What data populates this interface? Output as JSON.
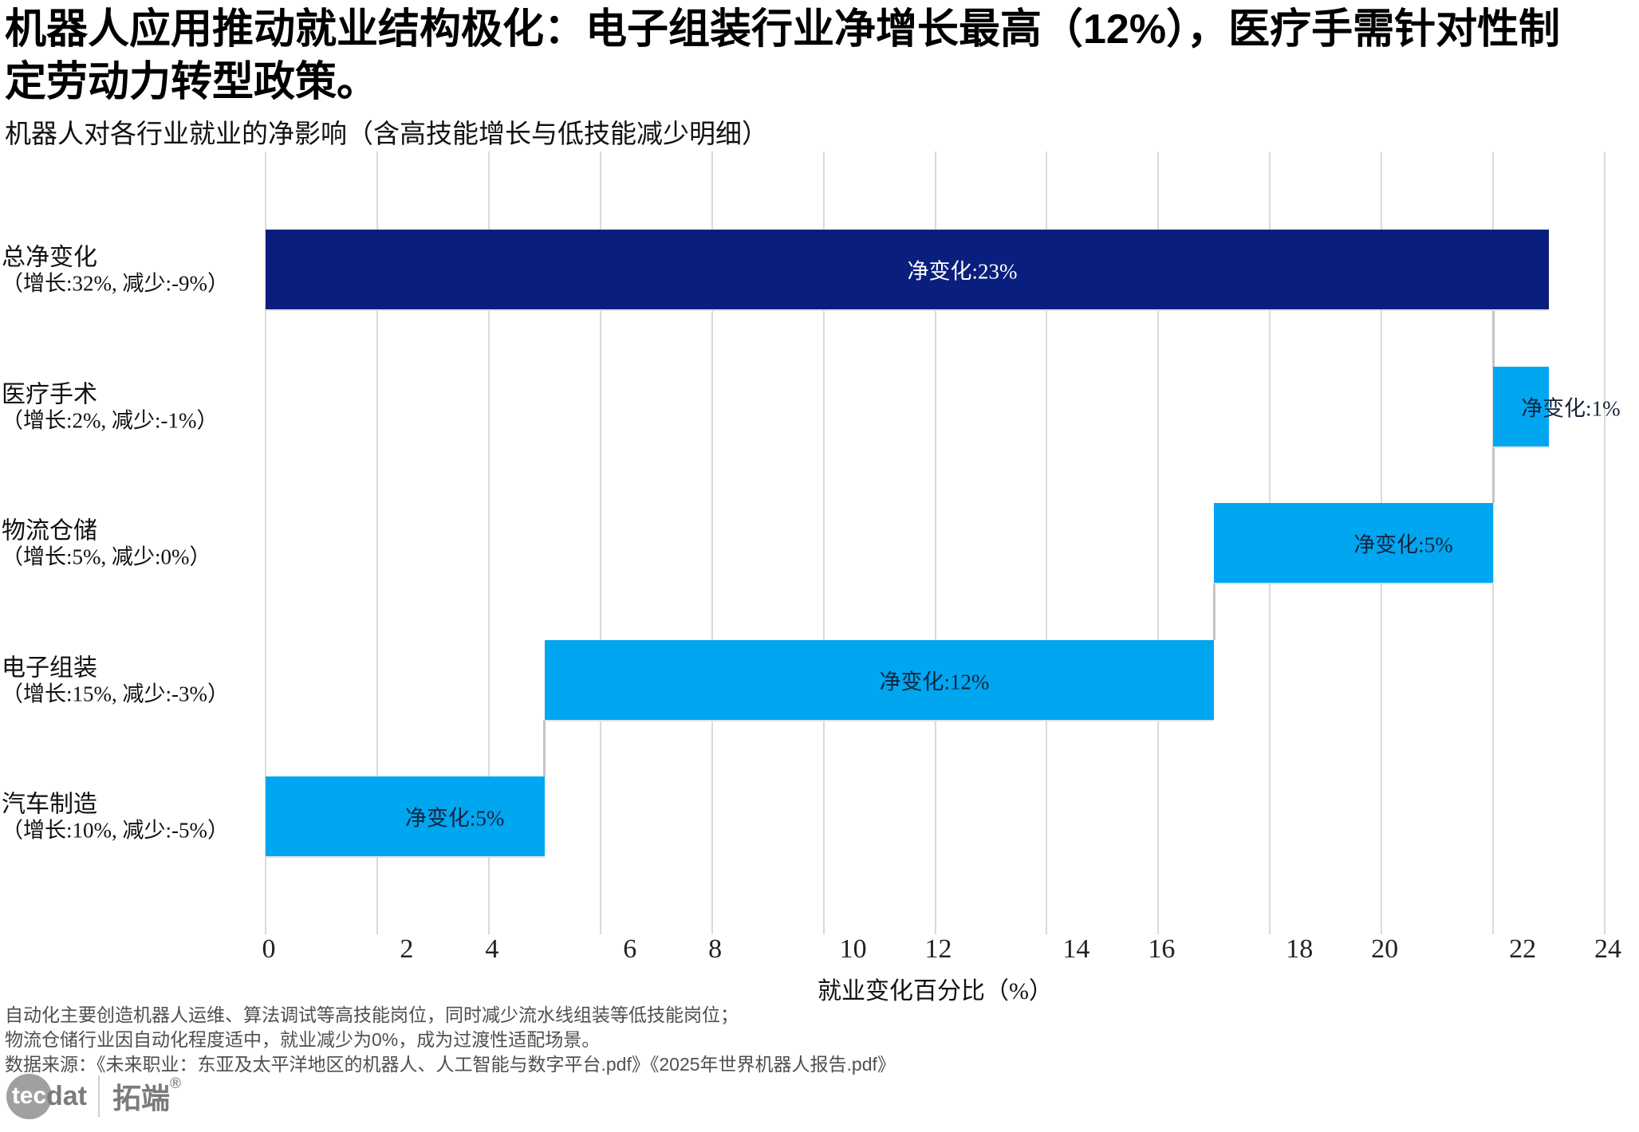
{
  "title": "机器人应用推动就业结构极化：电子组装行业净增长最高（12%），医疗手需针对性制定劳动力转型政策。",
  "subtitle": "机器人对各行业就业的净影响（含高技能增长与低技能减少明细）",
  "chart_data": {
    "type": "bar",
    "variant": "horizontal-waterfall",
    "title": "机器人对各行业就业的净影响（含高技能增长与低技能减少明细）",
    "xlabel": "就业变化百分比（%）",
    "ylabel": "",
    "xlim": [
      0,
      24
    ],
    "xticks": [
      0,
      2,
      4,
      6,
      8,
      10,
      12,
      14,
      16,
      18,
      20,
      22,
      24
    ],
    "grid": true,
    "legend": false,
    "rows": [
      {
        "category": "总净变化",
        "sublabel": "（增长:32%, 减少:-9%）",
        "growth_pct": 32,
        "decline_pct": -9,
        "start": 0,
        "end": 23,
        "net_pct": 23,
        "bar_label": "净变化:23%",
        "is_total": true
      },
      {
        "category": "医疗手术",
        "sublabel": "（增长:2%, 减少:-1%）",
        "growth_pct": 2,
        "decline_pct": -1,
        "start": 22,
        "end": 23,
        "net_pct": 1,
        "bar_label": "净变化:1%",
        "is_total": false
      },
      {
        "category": "物流仓储",
        "sublabel": "（增长:5%, 减少:0%）",
        "growth_pct": 5,
        "decline_pct": 0,
        "start": 17,
        "end": 22,
        "net_pct": 5,
        "bar_label": "净变化:5%",
        "is_total": false
      },
      {
        "category": "电子组装",
        "sublabel": "（增长:15%, 减少:-3%）",
        "growth_pct": 15,
        "decline_pct": -3,
        "start": 5,
        "end": 17,
        "net_pct": 12,
        "bar_label": "净变化:12%",
        "is_total": false
      },
      {
        "category": "汽车制造",
        "sublabel": "（增长:10%, 减少:-5%）",
        "growth_pct": 10,
        "decline_pct": -5,
        "start": 0,
        "end": 5,
        "net_pct": 5,
        "bar_label": "净变化:5%",
        "is_total": false
      }
    ],
    "connectors_x": [
      22,
      22,
      17,
      5
    ]
  },
  "colors": {
    "total_bar": "#0a1f7d",
    "change_bar": "#00a6f0",
    "grid": "#dadada",
    "connector": "#c4c4c4",
    "bar_label_on_total": "#ffffff",
    "bar_label_on_change": "#15233c",
    "footnote": "#4f4f4f"
  },
  "footnotes": [
    "自动化主要创造机器人运维、算法调试等高技能岗位，同时减少流水线组装等低技能岗位；",
    "物流仓储行业因自动化程度适中，就业减少为0%，成为过渡性适配场景。",
    "数据来源：《未来职业：东亚及太平洋地区的机器人、人工智能与数字平台.pdf》《2025年世界机器人报告.pdf》"
  ],
  "logo": {
    "brand_en_circle": "tec",
    "brand_en_rest": "dat",
    "brand_cn": "拓端",
    "registered": "®"
  }
}
